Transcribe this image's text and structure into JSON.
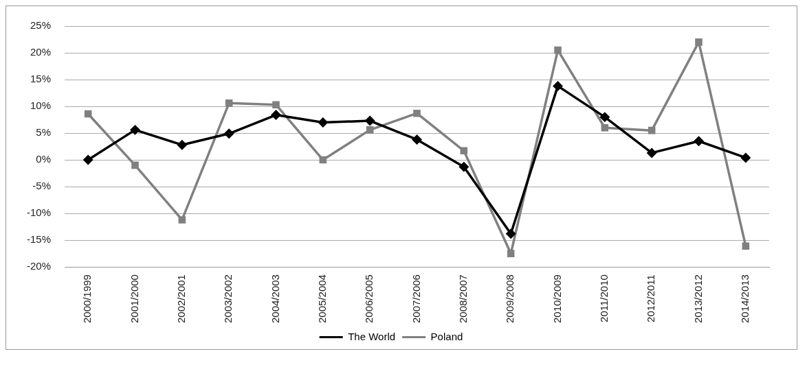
{
  "chart_data": {
    "type": "line",
    "categories": [
      "2000/1999",
      "2001/2000",
      "2002/2001",
      "2003/2002",
      "2004/2003",
      "2005/2004",
      "2006/2005",
      "2007/2006",
      "2008/2007",
      "2009/2008",
      "2010/2009",
      "2011/2010",
      "2012/2011",
      "2013/2012",
      "2014/2013"
    ],
    "series": [
      {
        "name": "The World",
        "color": "#000000",
        "marker": "diamond",
        "values": [
          0,
          5.6,
          2.8,
          4.9,
          8.4,
          7.0,
          7.3,
          3.8,
          -1.3,
          -13.8,
          13.8,
          8.0,
          1.3,
          3.5,
          0.4
        ]
      },
      {
        "name": "Poland",
        "color": "#808080",
        "marker": "square",
        "values": [
          8.6,
          -1.0,
          -11.2,
          10.6,
          10.3,
          0,
          5.6,
          8.7,
          1.7,
          -17.5,
          20.5,
          6.0,
          5.5,
          22.0,
          -16.1
        ]
      }
    ],
    "ylim": [
      -20,
      25
    ],
    "yticks": [
      {
        "value": -20,
        "label": "-20%"
      },
      {
        "value": -15,
        "label": "-15%"
      },
      {
        "value": -10,
        "label": "-10%"
      },
      {
        "value": -5,
        "label": "-5%"
      },
      {
        "value": 0,
        "label": "0%"
      },
      {
        "value": 5,
        "label": "5%"
      },
      {
        "value": 10,
        "label": "10%"
      },
      {
        "value": 15,
        "label": "15%"
      },
      {
        "value": 20,
        "label": "20%"
      },
      {
        "value": 25,
        "label": "25%"
      }
    ],
    "grid": "y",
    "legend": "bottom",
    "line_style": "solid"
  }
}
